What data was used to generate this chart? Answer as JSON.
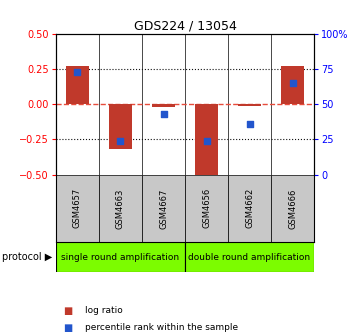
{
  "title": "GDS224 / 13054",
  "samples": [
    "GSM4657",
    "GSM4663",
    "GSM4667",
    "GSM4656",
    "GSM4662",
    "GSM4666"
  ],
  "log_ratio": [
    0.27,
    -0.32,
    -0.02,
    -0.5,
    -0.01,
    0.27
  ],
  "percentile_rank": [
    73,
    24,
    43,
    24,
    36,
    65
  ],
  "ylim_left": [
    -0.5,
    0.5
  ],
  "ylim_right": [
    0,
    100
  ],
  "yticks_left": [
    -0.5,
    -0.25,
    0,
    0.25,
    0.5
  ],
  "yticks_right": [
    0,
    25,
    50,
    75,
    100
  ],
  "bar_color": "#c0392b",
  "dot_color": "#2255cc",
  "hline_color": "#e74c3c",
  "dotted_color": "#111111",
  "group1_label": "single round amplification",
  "group2_label": "double round amplification",
  "group1_indices": [
    0,
    1,
    2
  ],
  "group2_indices": [
    3,
    4,
    5
  ],
  "protocol_label": "protocol",
  "legend_bar": "log ratio",
  "legend_dot": "percentile rank within the sample",
  "group_bg_color": "#7CFC00",
  "tick_box_color": "#c8c8c8",
  "figsize": [
    3.61,
    3.36
  ],
  "dpi": 100,
  "bar_width": 0.55,
  "dot_size": 22
}
